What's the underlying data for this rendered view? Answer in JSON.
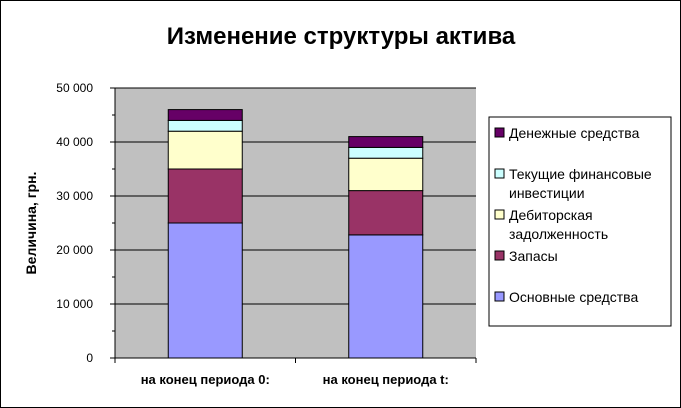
{
  "chart_data": {
    "type": "bar",
    "stacked": true,
    "title": "Изменение структуры актива",
    "xlabel": "",
    "ylabel": "Величина, грн.",
    "ylim": [
      0,
      50000
    ],
    "y_ticks": [
      "0",
      "10 000",
      "20 000",
      "30 000",
      "40 000",
      "50 000"
    ],
    "y_tick_values": [
      0,
      10000,
      20000,
      30000,
      40000,
      50000
    ],
    "grid": true,
    "legend_position": "right",
    "categories": [
      "на конец периода 0:",
      "на конец периода t:"
    ],
    "series": [
      {
        "name": "Основные средства",
        "color": "#9999ff",
        "values": [
          25000,
          22800
        ]
      },
      {
        "name": "Запасы",
        "color": "#993366",
        "values": [
          10000,
          8200
        ]
      },
      {
        "name": "Дебиторская задолженность",
        "color": "#ffffcc",
        "values": [
          7000,
          6000
        ]
      },
      {
        "name": "Текущие финансовые инвестиции",
        "color": "#ccffff",
        "values": [
          2000,
          2000
        ]
      },
      {
        "name": "Денежные средства",
        "color": "#660066",
        "values": [
          2000,
          2000
        ]
      }
    ],
    "legend": [
      {
        "lines": [
          "Денежные средства"
        ],
        "color": "#660066"
      },
      {
        "lines": [
          "Текущие финансовые",
          "инвестиции"
        ],
        "color": "#ccffff"
      },
      {
        "lines": [
          "Дебиторская",
          "задолженность"
        ],
        "color": "#ffffcc"
      },
      {
        "lines": [
          "Запасы"
        ],
        "color": "#993366"
      },
      {
        "lines": [
          "Основные средства"
        ],
        "color": "#9999ff"
      }
    ],
    "plot_background": "#c0c0c0"
  }
}
